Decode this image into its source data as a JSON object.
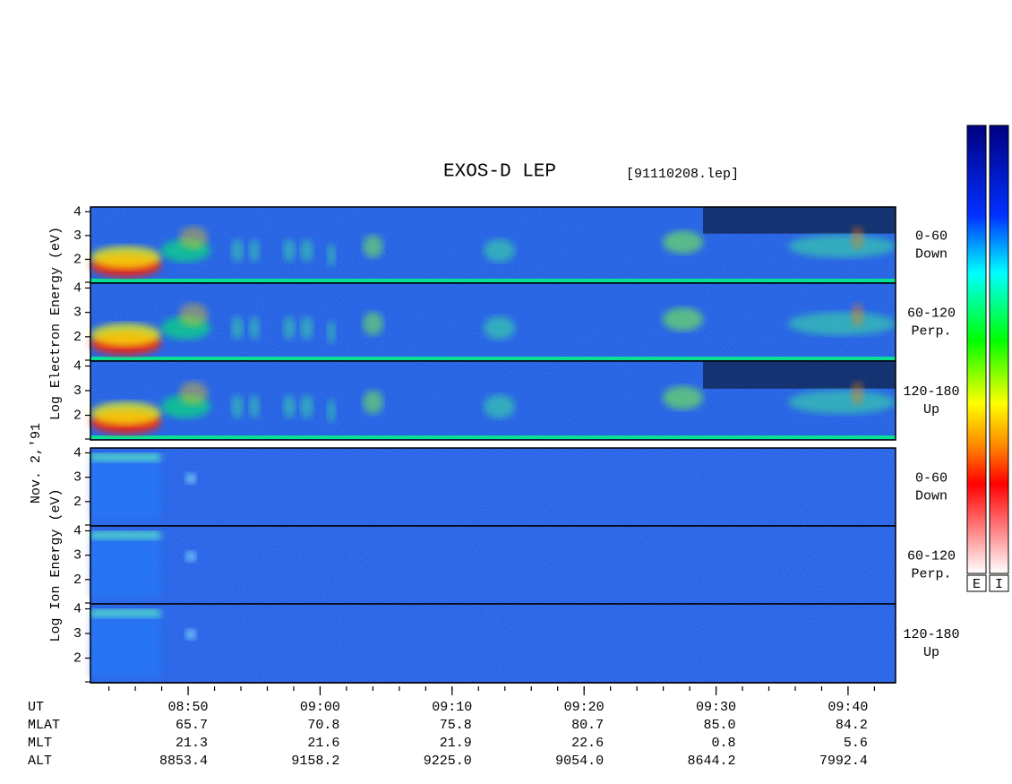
{
  "header": {
    "title": "EXOS-D LEP",
    "file": "[91110208.lep]"
  },
  "ylim": [
    1,
    4.2
  ],
  "yticks": [
    2,
    3,
    4
  ],
  "panels": [
    {
      "label": "0-60",
      "sublabel": "Down",
      "species": "electron"
    },
    {
      "label": "60-120",
      "sublabel": "Perp.",
      "species": "electron"
    },
    {
      "label": "120-180",
      "sublabel": "Up",
      "species": "electron"
    },
    {
      "label": "0-60",
      "sublabel": "Down",
      "species": "ion"
    },
    {
      "label": "60-120",
      "sublabel": "Perp.",
      "species": "ion"
    },
    {
      "label": "120-180",
      "sublabel": "Up",
      "species": "ion"
    }
  ],
  "side_labels": {
    "electron": "Log  Electron  Energy (eV)",
    "date": "Nov. 2,'91",
    "ion": "Log  Ion  Energy (eV)"
  },
  "colorbar": {
    "labels": [
      "E",
      "I"
    ]
  },
  "xlim": [
    522.6,
    583.6
  ],
  "xticks": [
    {
      "value": 530,
      "label": "08:50"
    },
    {
      "value": 540,
      "label": "09:00"
    },
    {
      "value": 550,
      "label": "09:10"
    },
    {
      "value": 560,
      "label": "09:20"
    },
    {
      "value": 570,
      "label": "09:30"
    },
    {
      "value": 580,
      "label": "09:40"
    }
  ],
  "orbit": {
    "names": [
      "UT",
      "MLAT",
      "MLT",
      "ALT"
    ],
    "rows": [
      [
        "65.7",
        "70.8",
        "75.8",
        "80.7",
        "85.0",
        "84.2"
      ],
      [
        "21.3",
        "21.6",
        "21.9",
        "22.6",
        "0.8",
        "5.6"
      ],
      [
        "8853.4",
        "9158.2",
        "9225.0",
        "9054.0",
        "8644.2",
        "7992.4"
      ]
    ]
  }
}
